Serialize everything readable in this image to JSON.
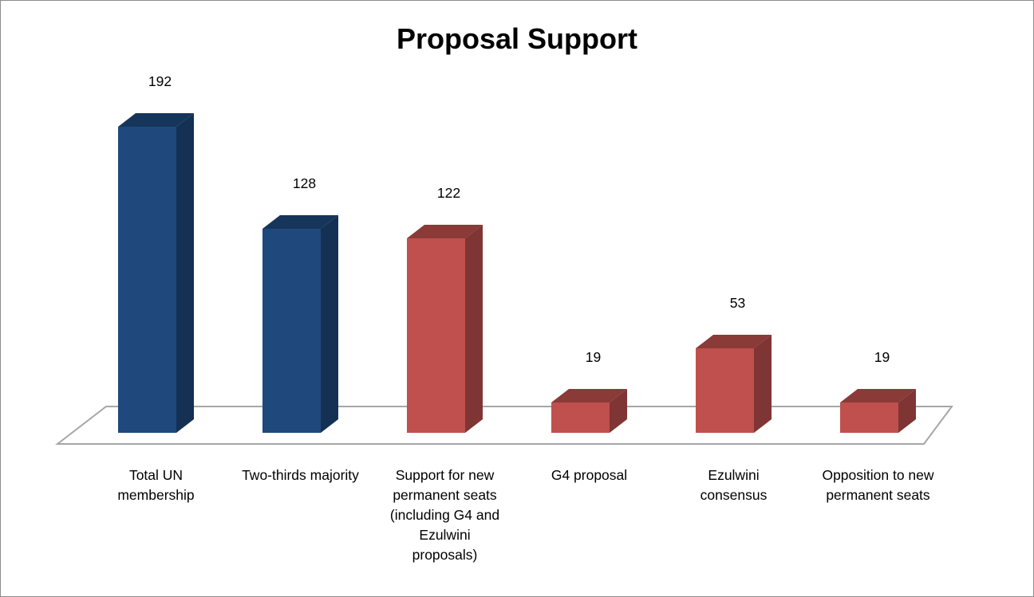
{
  "chart_data": {
    "type": "bar",
    "title": "Proposal Support",
    "categories": [
      "Total UN membership",
      "Two-thirds majority",
      "Support for new permanent seats (including G4 and Ezulwini proposals)",
      "G4 proposal",
      "Ezulwini consensus",
      "Opposition to new permanent seats"
    ],
    "values": [
      192,
      128,
      122,
      19,
      53,
      19
    ],
    "colors": [
      "#1f497d",
      "#1f497d",
      "#c0504d",
      "#c0504d",
      "#c0504d",
      "#c0504d"
    ],
    "data_labels": true,
    "three_d": true,
    "gridlines": false,
    "legend": "none"
  }
}
